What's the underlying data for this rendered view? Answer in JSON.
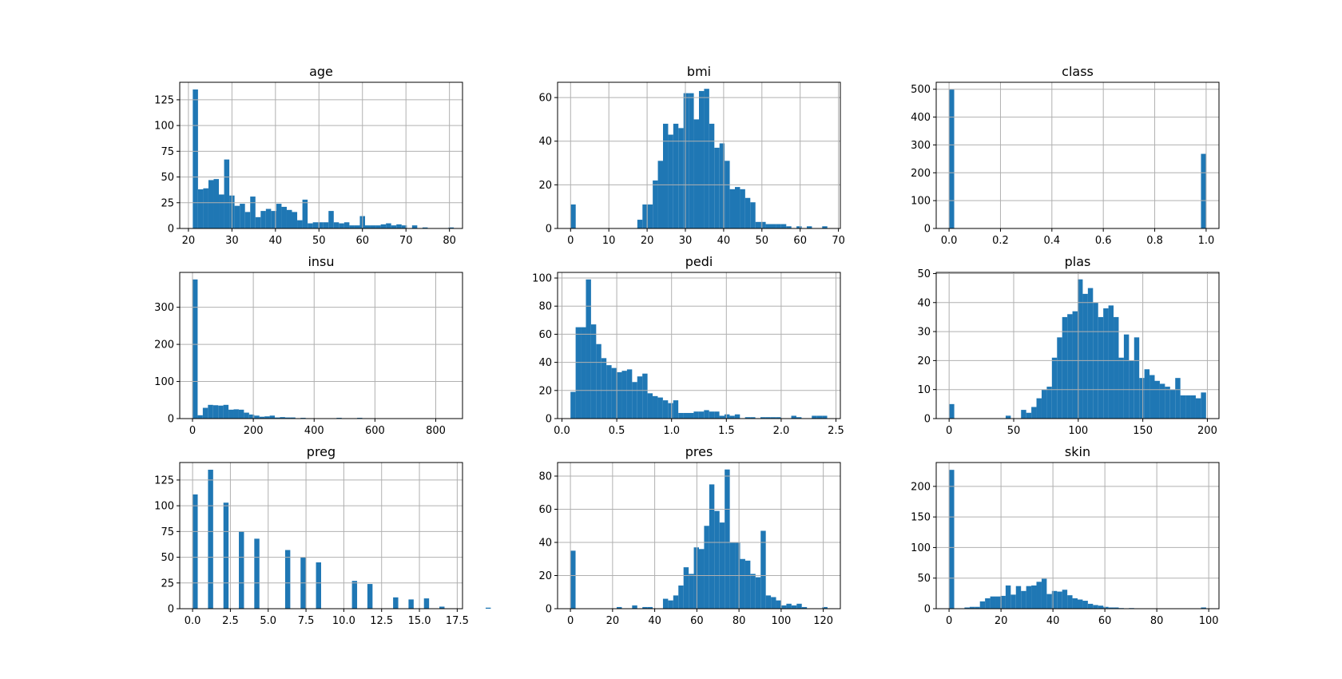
{
  "figure": {
    "bar_color": "#1f77b4",
    "grid": true,
    "layout": "3x3"
  },
  "chart_data": [
    {
      "type": "bar",
      "title": "age",
      "xlim": [
        18,
        83
      ],
      "ylim": [
        0,
        142
      ],
      "xticks": [
        {
          "value": 20,
          "label": "20"
        },
        {
          "value": 30,
          "label": "30"
        },
        {
          "value": 40,
          "label": "40"
        },
        {
          "value": 50,
          "label": "50"
        },
        {
          "value": 60,
          "label": "60"
        },
        {
          "value": 70,
          "label": "70"
        },
        {
          "value": 80,
          "label": "80"
        }
      ],
      "yticks": [
        {
          "value": 0,
          "label": "0"
        },
        {
          "value": 25,
          "label": "25"
        },
        {
          "value": 50,
          "label": "50"
        },
        {
          "value": 75,
          "label": "75"
        },
        {
          "value": 100,
          "label": "100"
        },
        {
          "value": 125,
          "label": "125"
        }
      ],
      "bin_start": 21,
      "bin_width": 1.2,
      "counts": [
        135,
        38,
        39,
        47,
        48,
        33,
        67,
        32,
        22,
        24,
        16,
        31,
        11,
        17,
        19,
        17,
        24,
        21,
        18,
        16,
        8,
        28,
        5,
        6,
        6,
        6,
        17,
        6,
        5,
        6,
        3,
        3,
        12,
        3,
        3,
        3,
        4,
        5,
        3,
        4,
        3,
        0,
        3,
        0,
        1,
        0,
        0,
        0,
        0,
        1
      ]
    },
    {
      "type": "bar",
      "title": "bmi",
      "xlim": [
        -3.4,
        70.5
      ],
      "ylim": [
        0,
        67
      ],
      "xticks": [
        {
          "value": 0,
          "label": "0"
        },
        {
          "value": 10,
          "label": "10"
        },
        {
          "value": 20,
          "label": "20"
        },
        {
          "value": 30,
          "label": "30"
        },
        {
          "value": 40,
          "label": "40"
        },
        {
          "value": 50,
          "label": "50"
        },
        {
          "value": 60,
          "label": "60"
        },
        {
          "value": 70,
          "label": "70"
        }
      ],
      "yticks": [
        {
          "value": 0,
          "label": "0"
        },
        {
          "value": 20,
          "label": "20"
        },
        {
          "value": 40,
          "label": "40"
        },
        {
          "value": 60,
          "label": "60"
        }
      ],
      "bin_start": 0,
      "bin_width": 1.342,
      "counts": [
        11,
        0,
        0,
        0,
        0,
        0,
        0,
        0,
        0,
        0,
        0,
        0,
        0,
        4,
        11,
        11,
        22,
        31,
        48,
        43,
        48,
        46,
        62,
        62,
        50,
        63,
        64,
        48,
        37,
        39,
        31,
        18,
        19,
        18,
        14,
        12,
        3,
        3,
        2,
        2,
        2,
        2,
        1,
        0,
        1,
        0,
        1,
        0,
        0,
        1
      ]
    },
    {
      "type": "bar",
      "title": "class",
      "xlim": [
        -0.05,
        1.05
      ],
      "ylim": [
        0,
        525
      ],
      "xticks": [
        {
          "value": 0,
          "label": "0.0"
        },
        {
          "value": 0.2,
          "label": "0.2"
        },
        {
          "value": 0.4,
          "label": "0.4"
        },
        {
          "value": 0.6,
          "label": "0.6"
        },
        {
          "value": 0.8,
          "label": "0.8"
        },
        {
          "value": 1.0,
          "label": "1.0"
        }
      ],
      "yticks": [
        {
          "value": 0,
          "label": "0"
        },
        {
          "value": 100,
          "label": "100"
        },
        {
          "value": 200,
          "label": "200"
        },
        {
          "value": 300,
          "label": "300"
        },
        {
          "value": 400,
          "label": "400"
        },
        {
          "value": 500,
          "label": "500"
        }
      ],
      "bin_start": 0,
      "bin_width": 0.02,
      "counts": [
        500,
        0,
        0,
        0,
        0,
        0,
        0,
        0,
        0,
        0,
        0,
        0,
        0,
        0,
        0,
        0,
        0,
        0,
        0,
        0,
        0,
        0,
        0,
        0,
        0,
        0,
        0,
        0,
        0,
        0,
        0,
        0,
        0,
        0,
        0,
        0,
        0,
        0,
        0,
        0,
        0,
        0,
        0,
        0,
        0,
        0,
        0,
        0,
        0,
        268
      ]
    },
    {
      "type": "bar",
      "title": "insu",
      "xlim": [
        -42,
        888
      ],
      "ylim": [
        0,
        394
      ],
      "xticks": [
        {
          "value": 0,
          "label": "0"
        },
        {
          "value": 200,
          "label": "200"
        },
        {
          "value": 400,
          "label": "400"
        },
        {
          "value": 600,
          "label": "600"
        },
        {
          "value": 800,
          "label": "800"
        }
      ],
      "yticks": [
        {
          "value": 0,
          "label": "0"
        },
        {
          "value": 100,
          "label": "100"
        },
        {
          "value": 200,
          "label": "200"
        },
        {
          "value": 300,
          "label": "300"
        }
      ],
      "bin_start": 0,
      "bin_width": 16.92,
      "counts": [
        375,
        9,
        29,
        37,
        36,
        35,
        37,
        24,
        25,
        24,
        16,
        11,
        8,
        5,
        6,
        8,
        3,
        4,
        3,
        3,
        1,
        2,
        1,
        0,
        0,
        0,
        0,
        1,
        2,
        1,
        1,
        0,
        2,
        0,
        0,
        0,
        0,
        0,
        0,
        0,
        0,
        0,
        0,
        0,
        0,
        0,
        0,
        0,
        0,
        1
      ]
    },
    {
      "type": "bar",
      "title": "pedi",
      "xlim": [
        -0.04,
        2.54
      ],
      "ylim": [
        0,
        104
      ],
      "xticks": [
        {
          "value": 0,
          "label": "0.0"
        },
        {
          "value": 0.5,
          "label": "0.5"
        },
        {
          "value": 1.0,
          "label": "1.0"
        },
        {
          "value": 1.5,
          "label": "1.5"
        },
        {
          "value": 2.0,
          "label": "2.0"
        },
        {
          "value": 2.5,
          "label": "2.5"
        }
      ],
      "yticks": [
        {
          "value": 0,
          "label": "0"
        },
        {
          "value": 20,
          "label": "20"
        },
        {
          "value": 40,
          "label": "40"
        },
        {
          "value": 60,
          "label": "60"
        },
        {
          "value": 80,
          "label": "80"
        },
        {
          "value": 100,
          "label": "100"
        }
      ],
      "bin_start": 0.078,
      "bin_width": 0.04684,
      "counts": [
        19,
        65,
        65,
        99,
        67,
        53,
        43,
        38,
        36,
        33,
        34,
        35,
        26,
        30,
        32,
        18,
        16,
        15,
        13,
        11,
        13,
        4,
        4,
        4,
        5,
        5,
        6,
        5,
        5,
        2,
        3,
        2,
        3,
        0,
        1,
        1,
        0,
        1,
        1,
        1,
        1,
        0,
        0,
        2,
        1,
        0,
        0,
        2,
        2,
        2
      ]
    },
    {
      "type": "bar",
      "title": "plas",
      "xlim": [
        -10,
        209
      ],
      "ylim": [
        0,
        50.4
      ],
      "xticks": [
        {
          "value": 0,
          "label": "0"
        },
        {
          "value": 50,
          "label": "50"
        },
        {
          "value": 100,
          "label": "100"
        },
        {
          "value": 150,
          "label": "150"
        },
        {
          "value": 200,
          "label": "200"
        }
      ],
      "yticks": [
        {
          "value": 0,
          "label": "0"
        },
        {
          "value": 10,
          "label": "10"
        },
        {
          "value": 20,
          "label": "20"
        },
        {
          "value": 30,
          "label": "30"
        },
        {
          "value": 40,
          "label": "40"
        },
        {
          "value": 50,
          "label": "50"
        }
      ],
      "bin_start": 0,
      "bin_width": 3.98,
      "counts": [
        5,
        0,
        0,
        0,
        0,
        0,
        0,
        0,
        0,
        0,
        0,
        1,
        0,
        0,
        3,
        2,
        4,
        7,
        10,
        11,
        21,
        28,
        35,
        36,
        37,
        48,
        43,
        45,
        40,
        35,
        38,
        39,
        35,
        21,
        29,
        20,
        28,
        14,
        17,
        15,
        13,
        12,
        11,
        10,
        14,
        8,
        8,
        8,
        7,
        9
      ]
    },
    {
      "type": "bar",
      "title": "preg",
      "xlim": [
        -0.85,
        17.85
      ],
      "ylim": [
        0,
        142
      ],
      "xticks": [
        {
          "value": 0,
          "label": "0.0"
        },
        {
          "value": 2.5,
          "label": "2.5"
        },
        {
          "value": 5.0,
          "label": "5.0"
        },
        {
          "value": 7.5,
          "label": "7.5"
        },
        {
          "value": 10.0,
          "label": "10.0"
        },
        {
          "value": 12.5,
          "label": "12.5"
        },
        {
          "value": 15.0,
          "label": "15.0"
        },
        {
          "value": 17.5,
          "label": "17.5"
        }
      ],
      "yticks": [
        {
          "value": 0,
          "label": "0"
        },
        {
          "value": 25,
          "label": "25"
        },
        {
          "value": 50,
          "label": "50"
        },
        {
          "value": 75,
          "label": "75"
        },
        {
          "value": 100,
          "label": "100"
        },
        {
          "value": 125,
          "label": "125"
        }
      ],
      "bin_start": 0,
      "bin_width": 0.34,
      "counts": [
        111,
        0,
        0,
        135,
        0,
        0,
        103,
        0,
        0,
        75,
        0,
        0,
        68,
        0,
        0,
        0,
        0,
        0,
        57,
        0,
        0,
        50,
        0,
        0,
        45,
        0,
        0,
        0,
        0,
        0,
        0,
        27,
        0,
        0,
        24,
        0,
        0,
        0,
        0,
        11,
        0,
        0,
        9,
        0,
        0,
        10,
        0,
        0,
        2,
        0,
        0,
        0,
        0,
        0,
        0,
        0,
        0,
        1,
        0,
        0
      ]
    },
    {
      "type": "bar",
      "title": "pres",
      "xlim": [
        -6.1,
        128.1
      ],
      "ylim": [
        0,
        88.2
      ],
      "xticks": [
        {
          "value": 0,
          "label": "0"
        },
        {
          "value": 20,
          "label": "20"
        },
        {
          "value": 40,
          "label": "40"
        },
        {
          "value": 60,
          "label": "60"
        },
        {
          "value": 80,
          "label": "80"
        },
        {
          "value": 100,
          "label": "100"
        },
        {
          "value": 120,
          "label": "120"
        }
      ],
      "yticks": [
        {
          "value": 0,
          "label": "0"
        },
        {
          "value": 20,
          "label": "20"
        },
        {
          "value": 40,
          "label": "40"
        },
        {
          "value": 60,
          "label": "60"
        },
        {
          "value": 80,
          "label": "80"
        }
      ],
      "bin_start": 0,
      "bin_width": 2.44,
      "counts": [
        35,
        0,
        0,
        0,
        0,
        0,
        0,
        0,
        0,
        1,
        0,
        0,
        2,
        0,
        1,
        1,
        0,
        0,
        6,
        5,
        8,
        14,
        25,
        21,
        37,
        36,
        50,
        75,
        59,
        52,
        84,
        40,
        40,
        30,
        29,
        21,
        19,
        47,
        8,
        7,
        5,
        2,
        3,
        2,
        3,
        1,
        0,
        0,
        0,
        1
      ]
    },
    {
      "type": "bar",
      "title": "skin",
      "xlim": [
        -4.95,
        103.95
      ],
      "ylim": [
        0,
        239
      ],
      "xticks": [
        {
          "value": 0,
          "label": "0"
        },
        {
          "value": 20,
          "label": "20"
        },
        {
          "value": 40,
          "label": "40"
        },
        {
          "value": 60,
          "label": "60"
        },
        {
          "value": 80,
          "label": "80"
        },
        {
          "value": 100,
          "label": "100"
        }
      ],
      "yticks": [
        {
          "value": 0,
          "label": "0"
        },
        {
          "value": 50,
          "label": "50"
        },
        {
          "value": 100,
          "label": "100"
        },
        {
          "value": 150,
          "label": "150"
        },
        {
          "value": 200,
          "label": "200"
        }
      ],
      "bin_start": 0,
      "bin_width": 1.98,
      "counts": [
        227,
        0,
        0,
        2,
        3,
        3,
        12,
        17,
        20,
        20,
        21,
        38,
        23,
        37,
        29,
        37,
        38,
        44,
        49,
        24,
        29,
        28,
        31,
        22,
        17,
        15,
        13,
        8,
        6,
        5,
        3,
        2,
        2,
        1,
        0,
        1,
        0,
        0,
        0,
        0,
        0,
        0,
        0,
        0,
        0,
        0,
        0,
        0,
        0,
        2
      ]
    }
  ]
}
